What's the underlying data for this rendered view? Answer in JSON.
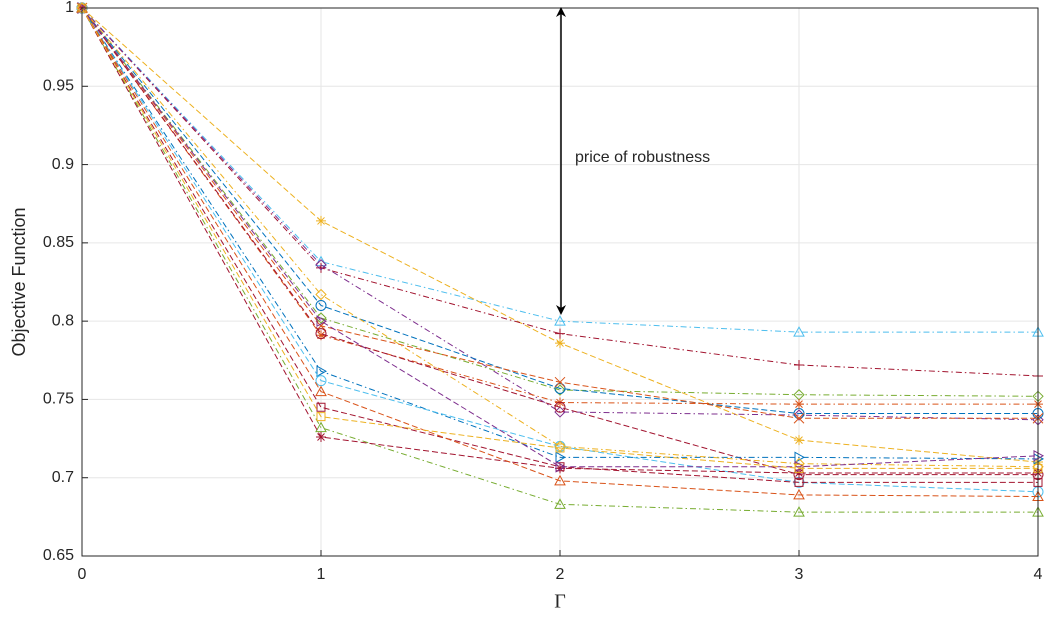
{
  "chart_data": {
    "type": "line",
    "x_label": "Γ",
    "y_label": "Objective Function",
    "annotation": "price of robustness",
    "x": [
      0,
      1,
      2,
      3,
      4
    ],
    "xlim": [
      0,
      4
    ],
    "xticks": [
      0,
      1,
      2,
      3,
      4
    ],
    "ylim": [
      0.65,
      1
    ],
    "yticks": [
      0.65,
      0.7,
      0.75,
      0.8,
      0.85,
      0.9,
      0.95,
      1
    ],
    "grid": true,
    "series": [
      {
        "color": "#4DBEEE",
        "dash": "dashdot",
        "marker": "tri-up",
        "values": [
          1,
          0.838,
          0.8,
          0.793,
          0.793
        ]
      },
      {
        "color": "#EDB120",
        "dash": "dashed",
        "marker": "star",
        "values": [
          1,
          0.864,
          0.786,
          0.724,
          0.71
        ]
      },
      {
        "color": "#A2142F",
        "dash": "dashdot",
        "marker": "plus",
        "values": [
          1,
          0.834,
          0.792,
          0.772,
          0.765
        ]
      },
      {
        "color": "#7E2F8E",
        "dash": "dashdot",
        "marker": "diamond",
        "values": [
          1,
          0.836,
          0.742,
          0.74,
          0.737
        ]
      },
      {
        "color": "#77AC30",
        "dash": "dashdot",
        "marker": "diamond",
        "values": [
          1,
          0.802,
          0.756,
          0.753,
          0.752
        ]
      },
      {
        "color": "#0072BD",
        "dash": "dashed",
        "marker": "circle",
        "values": [
          1,
          0.81,
          0.757,
          0.741,
          0.741
        ]
      },
      {
        "color": "#D95319",
        "dash": "dashed",
        "marker": "x",
        "values": [
          1,
          0.797,
          0.761,
          0.738,
          0.738
        ]
      },
      {
        "color": "#D95319",
        "dash": "dashdot",
        "marker": "star",
        "values": [
          1,
          0.791,
          0.748,
          0.747,
          0.747
        ]
      },
      {
        "color": "#A2142F",
        "dash": "dashed",
        "marker": "circle",
        "values": [
          1,
          0.792,
          0.745,
          0.702,
          0.702
        ]
      },
      {
        "color": "#0072BD",
        "dash": "dashdot",
        "marker": "tri-right",
        "values": [
          1,
          0.768,
          0.713,
          0.713,
          0.712
        ]
      },
      {
        "color": "#4DBEEE",
        "dash": "dashed",
        "marker": "circle",
        "values": [
          1,
          0.762,
          0.72,
          0.697,
          0.691
        ]
      },
      {
        "color": "#77AC30",
        "dash": "dashdot",
        "marker": "tri-up",
        "values": [
          1,
          0.732,
          0.683,
          0.678,
          0.678
        ]
      },
      {
        "color": "#A2142F",
        "dash": "dashed",
        "marker": "star",
        "values": [
          1,
          0.726,
          0.706,
          0.703,
          0.703
        ]
      },
      {
        "color": "#A2142F",
        "dash": "dashed",
        "marker": "square",
        "values": [
          1,
          0.745,
          0.707,
          0.697,
          0.697
        ]
      },
      {
        "color": "#D95319",
        "dash": "dashed",
        "marker": "tri-up",
        "values": [
          1,
          0.755,
          0.698,
          0.689,
          0.688
        ]
      },
      {
        "color": "#EDB120",
        "dash": "dashdot",
        "marker": "diamond",
        "values": [
          1,
          0.817,
          0.72,
          0.709,
          0.707
        ]
      },
      {
        "color": "#7E2F8E",
        "dash": "dashed",
        "marker": "tri-right",
        "values": [
          1,
          0.8,
          0.707,
          0.707,
          0.714
        ]
      },
      {
        "color": "#EDB120",
        "dash": "dashed",
        "marker": "square",
        "values": [
          1,
          0.739,
          0.719,
          0.706,
          0.706
        ]
      }
    ]
  }
}
